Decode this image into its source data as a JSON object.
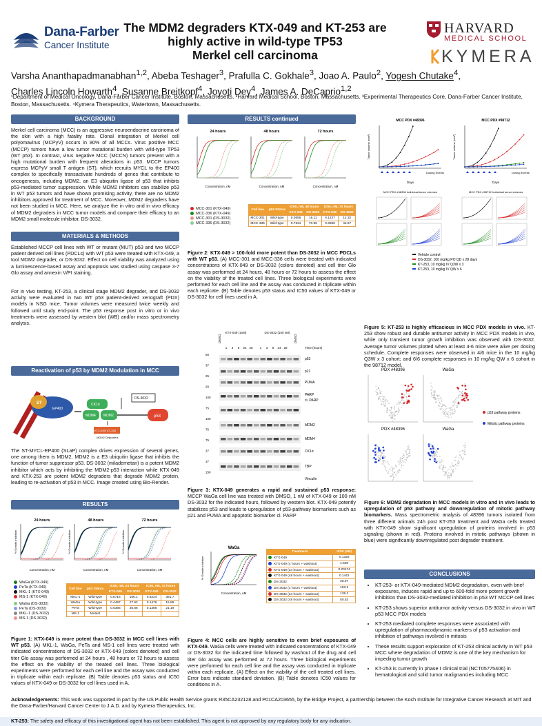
{
  "title": "The MDM2 degraders KTX-049 and KT-253 are highly active in wild-type TP53 Merkel cell carcinoma",
  "title_lines": [
    "The MDM2 degraders KTX-049 and KT-253 are",
    "highly active in wild-type TP53",
    "Merkel cell carcinoma"
  ],
  "logos": {
    "dana_farber": "Dana-Farber",
    "dana_farber_sub": "Cancer Institute",
    "harvard": "HARVARD",
    "harvard_sub": "MEDICAL SCHOOL",
    "kymera": "KYMERA"
  },
  "authors": {
    "line1": "Varsha Ananthapadmanabhan",
    "line1_sup": "1,2",
    "rest1": ", Abeba Teshager",
    "rest1_sup": "3",
    "rest2": ", Prafulla C. Gokhale",
    "rest2_sup": "3",
    "rest3": ", Joao A. Paulo",
    "rest3_sup": "2",
    "rest4": ", ",
    "yogesh": "Yogesh Chutake",
    "yogesh_sup": "4",
    "line2": "Charles Lincoln Howarth",
    "l2s1": "4",
    "l2a": ", Susanne Breitkopf",
    "l2s2": "4",
    "l2b": ", Joyoti Dey",
    "l2s3": "4",
    "l2c": ", James A. DeCaprio",
    "l2s4": "1,2"
  },
  "affiliations": "¹Department of Medical Oncology, Dana-Farber Cancer Institute, Boston, Massachusetts. ²Harvard Medical School, Boston, Massachusetts. ³Experimental Therapeutics Core, Dana-Farber Cancer Institute, Boston, Massachusetts. ⁴Kymera Therapeutics, Watertown, Massachusetts.",
  "sections": {
    "background": "BACKGROUND",
    "methods": "MATERIALS & METHODS",
    "reactivation": "Reactivation of p53 by MDM2 Modulation in MCC",
    "results": "RESULTS",
    "results_continued": "RESULTS continued",
    "conclusions": "CONCLUSIONS"
  },
  "background_text": "Merkel cell carcinoma (MCC) is an aggressive neuroendocrine carcinoma of the skin with a high fatality rate. Clonal integration of Merkel cell polyomavirus (MCPyV) occurs in 80% of all MCCs. Virus positive MCC (MCCP) tumors have a low tumor mutational burden with wild-type TP53 (WT p53). In contrast, virus negative MCC (MCCN) tumors present with a high mutational burden with frequent alterations in p53. MCCP tumors express MCPyV small T antigen (ST), which recruits MYCL to the EP400 complex to specifically transactivate hundreds of genes that contribute to oncogenesis, including MDM2, an E3 ubiquitin ligase of p53 that inhibits p53-mediated tumor suppression. While MDM2 inhibitors can stabilize p53 in WT p53 tumors and have shown promising activity, there are no MDM2 inhibitors approved for treatment of MCC. Moreover, MDM2 degraders have not been studied in MCC. Here, we analyze the in vitro and in vivo efficacy of MDM2 degraders in MCC tumor models and compare their efficacy to an MDM2 small molecule inhibitor, DS-3032.",
  "methods_text1": "Established MCCP cell lines with WT or mutant (MUT) p53 and two MCCP patient derived cell lines (PDCLs) with WT p53 were treated with KTX-049, a tool MDM2 degrader, or DS-3032. Effect on cell viability was analyzed using a luminescence-based assay and apoptosis was studied using caspase 3-7 Glo assay and annexin V/PI staining.",
  "methods_text2": "For in vivo testing, KT-253, a clinical stage MDM2 degrader, and DS-3032 activity were evaluated in two WT p53 patient-derived xenograft (PDX) models in NSG mice. Tumor volumes were measured twice weekly and followed until study end-point. The p53 response post in vitro or in vivo treatments were assessed by western blot (WB) and/or mass spectrometry analysis.",
  "pathway": {
    "st": "ST",
    "ep400": "EP400",
    "ck1a": "CK1α",
    "mdm4": "MDM4",
    "mdm2": "MDM2",
    "ds3032": "DS-3032",
    "p53": "p53",
    "degrader": "KTX-049/ KT-253",
    "degrader_sub": "MDM2 Degraders"
  },
  "pathway_caption": "The ST-MYCL-EP400 (SLaP) complex drives expression of several genes, one among them is MDM2. MDM2 is a E3 ubiquitin ligase that inhibits the function of tumor suppressor p53. DS-3032 (milademetan) is a potent MDM2 inhibitor which acts by inhibiting the MDM2-p53 interaction while KTX-049 and KTX-253 are potent MDM2 degraders that degrade MDM2 protein, leading to re-activation of p53 in MCC. Image created using Bio-Render.",
  "fig1": {
    "panels": [
      "24 hours",
      "48 hours",
      "72 hours"
    ],
    "xlabel": "Concentration, nM",
    "ylabel": "% Growth inhibition",
    "legend_a": [
      "WaGa (KTX-049)",
      "PeTa (KTX-049)",
      "MKL-1 (KTX-049)",
      "MS-1 (KTX-049)"
    ],
    "legend_b": [
      "WaGa (DS-3032)",
      "PeTa (DS-3032)",
      "MKL-1 (DS-3032)",
      "MS-1 (DS-3032)"
    ],
    "table_header": [
      "Cell line",
      "p53 Status",
      "IC50, nM, 24 hours",
      "IC50, nM, 72 hours"
    ],
    "table_sub": [
      "KTX-049",
      "DS-3032",
      "KTX-049",
      "DS-3032"
    ],
    "table_rows": [
      [
        "MKL-1",
        "Wild-type",
        "0.6716",
        "166.1",
        "0.6224",
        "381.7"
      ],
      [
        "WaGa",
        "Wild-type",
        "0.4467",
        "27.62",
        "0.1476",
        "15.85"
      ],
      [
        "PeTa",
        "Wild-type",
        "0.5366",
        "35.66",
        "0.1385",
        "21.19"
      ],
      [
        "MS-1",
        "Mutant",
        "",
        "",
        "",
        ""
      ]
    ],
    "caption_bold": "Figure 1: KTX-049 is more potent than DS-3032 in MCC cell lines with WT p53.",
    "caption": " (A) MKL-1, WaGa, PeTa and MS-1 cell lines were treated with indicated concentrations of DS-3032 or KTX-049 (colors denoted) and cell titer Glo assay was performed at 24 hours , 48 hours or 72 hours to assess the effect on the viability of the treated cell lines. Three biological experiments were performed for each cell line and the assay was conducted in triplicate within each replicate. (B) Table denotes p53 status and IC50 values of KTX-049 or DS-3032 for cell lines used in A."
  },
  "fig2": {
    "panels": [
      "24 hours",
      "48 hours",
      "72 hours"
    ],
    "xlabel": "Concentration, nM",
    "legend": [
      "MCC-301 (KTX-049)",
      "MCC-336 (KTX-049)",
      "MCC-301 (DS-3032)",
      "MCC-336 (DS-3032)"
    ],
    "table_header": [
      "Cell line",
      "p53 Status",
      "IC50, nM, 48 hours",
      "IC50, nM, 72 hours"
    ],
    "table_sub": [
      "KTX-049",
      "DS-3032",
      "KTX-049",
      "DS-3032"
    ],
    "table_rows": [
      [
        "MCC-301",
        "Wild-type",
        "0.0656",
        "16.11",
        "0.1227",
        "12.32"
      ],
      [
        "MCC-336",
        "Wild-type",
        "0.7221",
        "70.96",
        "0.3690",
        "42.67"
      ]
    ],
    "caption_bold": "Figure 2: KTX-049 > 100-fold more potent than DS-3032 in MCC PDCLs with WT p53.",
    "caption": " (A) MCC-301 and MCC-336 cells were treated with indicated concentrations of KTX-049 or DS-3032 (colors denoted) and cell titer Glo assay was performed at 24 hours, 48 hours or 72 hours to assess the effect on the viability of the treated cell lines. Three biological experiments were performed for each cell line and the assay was conducted in triplicate within each replicate. (B) Table denotes p53 status and IC50 values of KTX-049 or DS-3032 for cell lines used in A."
  },
  "fig3": {
    "groups": [
      "KTX-049 (1nM)",
      "DS-3032 (100 nM)"
    ],
    "dmso": "DMSO",
    "time_label": "Time (hours)",
    "times": [
      "1",
      "3",
      "6",
      "24",
      "25",
      "1",
      "3",
      "6",
      "24",
      "25"
    ],
    "markers": [
      "50",
      "37",
      "25",
      "20",
      "100",
      "75",
      "100",
      "75",
      "75",
      "37",
      "37",
      "150"
    ],
    "bands": [
      "p53",
      "p21",
      "PUMA",
      "PARP",
      "cl. PARP",
      "MDM2",
      "MDM4",
      "CK1α",
      "TBP",
      "Vinculin"
    ],
    "caption_bold": "Figure 3: KTX-049 generates a rapid and sustained p53 response:",
    "caption": " MCCP WaGa cell line was treated with DMSO, 1 nM of KTX-049 or 100 nM DS-3032 for the indicated hours, followed by western blot. KTX-049 potently stabilizes p53 and leads to upregulation of p53-pathway biomarkers such as p21 and PUMA and apoptotic biomarker cl. PARP"
  },
  "fig4": {
    "title": "WaGa",
    "xlabel": "Concentration, nM",
    "ylabel": "% Growth inhibition",
    "table_header": [
      "Treatment",
      "IC50 (nM)"
    ],
    "rows": [
      [
        "KTX-049",
        "0.1325"
      ],
      [
        "KTX-049 (4 hours + washout)",
        "1.630"
      ],
      [
        "KTX-049 (24 hours + washout)",
        "0.20174"
      ],
      [
        "KTX-049 (48 hours + washout)",
        "0.1442"
      ],
      [
        "DS-3032",
        "28.97"
      ],
      [
        "DS-3032 (4 hours + washout)",
        "153.2"
      ],
      [
        "DS-3032 (24 hours + washout)",
        "138.2"
      ],
      [
        "DS-3032 (48 hours + washout)",
        "50.53"
      ]
    ],
    "caption_bold": "Figure 4: MCC cells are highly sensitive to even brief exposures of KTX-049.",
    "caption": " WaGa cells were treated with indicated concentrations of KTX-049 or DS-3032 for the indicated time followed by washout of the drug and cell titer Glo assay was performed at 72 hours. Three biological experiments were performed for each cell line and the assay was conducted in triplicate within each replicate. (A) Effect on the viability of the cell treated cell lines. Error bars indicate standard deviation. (B) Table denotes IC50 values for conditions in A."
  },
  "fig5": {
    "titles": [
      "MCC PDX #48396",
      "MCC PDX #98712"
    ],
    "ylabel": "Tumor volume (mm³)",
    "xlabel": "Days",
    "dosing": "Dosing Events",
    "sub_titles": [
      "MCC PDX #48396 Individual tumor volumes",
      "MCC PDX #98712 Individual tumor volumes"
    ],
    "legend": [
      "Vehicle control",
      "DS-3032, 100 mg/kg PO QD x 28 days",
      "KT-253, 10 mg/kg IV Q3W x 3",
      "KT-253, 10 mg/kg IV QW x 6"
    ],
    "caption_bold": "Figure 5: KT-253 is highly efficacious in MCC PDX models in vivo.",
    "caption": " KT-253 show robust and durable antitumor activity in MCC PDX models in vivo, while only transient tumor growth inhibition was observed with DS-3032. Average tumor volumes plotted when at least 4-6 mice were alive per dosing schedule. Complete responses were observed in 4/6 mice in the 10 mg/kg Q3W x 3 cohort; and 6/6 complete responses in 10 mg/kg QW x 6 cohort in the 98712 model."
  },
  "fig6": {
    "labels": [
      "PDX #48396",
      "WaGa"
    ],
    "legend": [
      "p53 pathway proteins",
      "Mitotic pathway proteins"
    ],
    "caption_bold": "Figure 6: MDM2 degradation in MCC models in vitro and in vivo leads to upregulation of p53 pathway and downregulation of mitotic pathway biomarkers.",
    "caption": " Mass spectrometric analysis of 48396 tumors isolated from three different animals 24h post KT-253 treatment and WaGa cells treated with KTX-049 show significant upregulation of proteins involved in p53 signaling (shown in red). Proteins involved in mitotic pathways (shown in blue) were significantly downregulated post degrader treatment."
  },
  "conclusions": [
    "KT-253- or KTX-049-mediated MDM2 degradation, even with brief exposures, induces rapid and up to 600-fold more potent growth inhibition than DS-3032-mediated inhibition in p53 WT MCCP cell lines",
    "KT-253 shows superior antitumor activity versus DS-3032 in vivo in WT p53 MCC PDX models",
    "KT-253 mediated complete responses were associated with upregulation of pharmacodynamic markers of p53 activation and inhibition of pathways involved in mitosis",
    "These results support exploration of KT-253 clinical activity in WT p53 MCC where degradation of MDM2 is one of the key mechanism for impeding tumor growth",
    "KT-253 is currently in phase I clinical trial (NCT05775406) in hematological and solid tumor malignancies including MCC"
  ],
  "ack_label": "Acknowledgements:",
  "ack": " This work was supported in part by the US Public Health Service grants R35CA232128 and P01CA203655, by the Bridge Project, a partnership between the Koch Institute for Integrative Cancer Research at MIT and the Dana-Farber/Harvard Cancer Center to J.A.D. and by Kymera Therapeutics, Inc.",
  "disclaimer_label": "KT-253:",
  "disclaimer": " The safety and efficacy of this investigational agent has not been established. This agent is not approved by any regulatory body for any indication.",
  "colors": {
    "section_header": "#4a6a9a",
    "table_header": "#f0a030",
    "df_blue": "#1b3d78",
    "harvard_red": "#a51c30",
    "kymera_orange": "#f39c2a",
    "red": "#d62728",
    "green": "#2ca02c",
    "blue": "#1f3fd0",
    "black": "#111111"
  }
}
